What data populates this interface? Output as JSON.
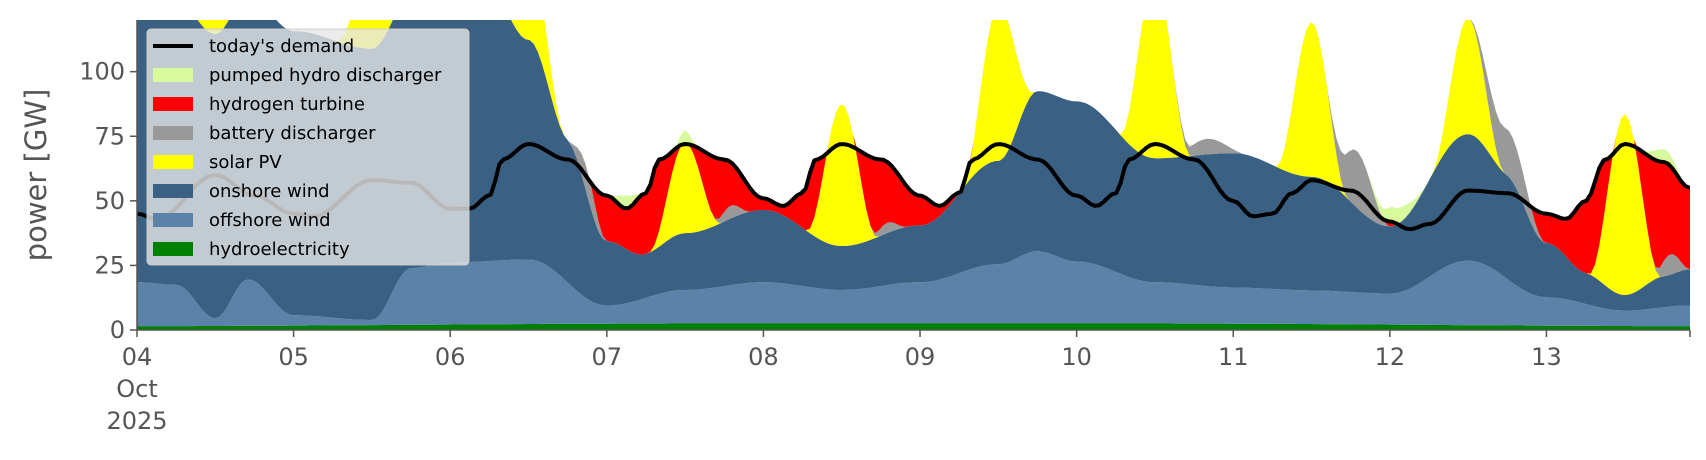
{
  "chart_data": {
    "type": "area",
    "ylabel": "power [GW]",
    "ylim": [
      0,
      120
    ],
    "yticks": [
      0,
      25,
      50,
      75,
      100
    ],
    "x_start": "2025-10-04",
    "x_end": "2025-10-13 22:00",
    "x_ticks": [
      {
        "date": "2025-10-04",
        "label": "04",
        "month": "Oct",
        "year": "2025"
      },
      {
        "date": "2025-10-05",
        "label": "05"
      },
      {
        "date": "2025-10-06",
        "label": "06"
      },
      {
        "date": "2025-10-07",
        "label": "07"
      },
      {
        "date": "2025-10-08",
        "label": "08"
      },
      {
        "date": "2025-10-09",
        "label": "09"
      },
      {
        "date": "2025-10-10",
        "label": "10"
      },
      {
        "date": "2025-10-11",
        "label": "11"
      },
      {
        "date": "2025-10-12",
        "label": "12"
      },
      {
        "date": "2025-10-13",
        "label": "13"
      }
    ],
    "legend_position": "top-left",
    "grid": false,
    "series": [
      {
        "name": "hydroelectricity",
        "color": "#008000",
        "kind": "stack",
        "points": [
          [
            "2025-10-04 00:00",
            1.5
          ],
          [
            "2025-10-07 12:00",
            2.5
          ],
          [
            "2025-10-10 12:00",
            2.5
          ],
          [
            "2025-10-13 22:00",
            1.5
          ]
        ]
      },
      {
        "name": "offshore wind",
        "color": "#5b82a8",
        "kind": "stack",
        "points": [
          [
            "2025-10-04 00:00",
            17
          ],
          [
            "2025-10-04 06:00",
            16
          ],
          [
            "2025-10-04 12:00",
            3
          ],
          [
            "2025-10-04 17:00",
            18
          ],
          [
            "2025-10-05 00:00",
            4
          ],
          [
            "2025-10-05 12:00",
            2
          ],
          [
            "2025-10-05 18:00",
            22
          ],
          [
            "2025-10-06 00:00",
            24
          ],
          [
            "2025-10-06 12:00",
            25
          ],
          [
            "2025-10-07 00:00",
            7
          ],
          [
            "2025-10-07 12:00",
            13
          ],
          [
            "2025-10-08 00:00",
            16
          ],
          [
            "2025-10-08 12:00",
            13
          ],
          [
            "2025-10-09 00:00",
            16
          ],
          [
            "2025-10-09 12:00",
            23
          ],
          [
            "2025-10-09 18:00",
            28
          ],
          [
            "2025-10-10 00:00",
            24
          ],
          [
            "2025-10-10 12:00",
            16
          ],
          [
            "2025-10-11 00:00",
            14
          ],
          [
            "2025-10-11 12:00",
            13
          ],
          [
            "2025-10-12 00:00",
            12
          ],
          [
            "2025-10-12 12:00",
            25
          ],
          [
            "2025-10-13 00:00",
            11
          ],
          [
            "2025-10-13 12:00",
            6
          ],
          [
            "2025-10-13 22:00",
            8
          ]
        ]
      },
      {
        "name": "onshore wind",
        "color": "#3a6184",
        "kind": "stack",
        "points": [
          [
            "2025-10-04 00:00",
            110
          ],
          [
            "2025-10-04 12:00",
            110
          ],
          [
            "2025-10-05 00:00",
            110
          ],
          [
            "2025-10-05 12:00",
            105
          ],
          [
            "2025-10-06 00:00",
            105
          ],
          [
            "2025-10-06 06:00",
            104
          ],
          [
            "2025-10-06 12:00",
            85
          ],
          [
            "2025-10-06 18:00",
            55
          ],
          [
            "2025-10-07 00:00",
            25
          ],
          [
            "2025-10-07 06:00",
            17
          ],
          [
            "2025-10-07 12:00",
            22
          ],
          [
            "2025-10-08 00:00",
            28
          ],
          [
            "2025-10-08 12:00",
            17
          ],
          [
            "2025-10-09 00:00",
            22
          ],
          [
            "2025-10-09 12:00",
            40
          ],
          [
            "2025-10-09 18:00",
            62
          ],
          [
            "2025-10-10 00:00",
            62
          ],
          [
            "2025-10-10 12:00",
            48
          ],
          [
            "2025-10-11 00:00",
            52
          ],
          [
            "2025-10-11 12:00",
            44
          ],
          [
            "2025-10-12 00:00",
            26
          ],
          [
            "2025-10-12 12:00",
            49
          ],
          [
            "2025-10-12 18:00",
            40
          ],
          [
            "2025-10-13 00:00",
            21
          ],
          [
            "2025-10-13 06:00",
            12
          ],
          [
            "2025-10-13 12:00",
            6
          ],
          [
            "2025-10-13 18:00",
            12
          ],
          [
            "2025-10-13 22:00",
            14
          ]
        ]
      },
      {
        "name": "solar PV",
        "color": "#ffff00",
        "kind": "peaks",
        "peaks": [
          [
            "2025-10-04 12:00",
            40
          ],
          [
            "2025-10-05 12:00",
            30
          ],
          [
            "2025-10-06 12:00",
            35
          ],
          [
            "2025-10-07 12:00",
            35
          ],
          [
            "2025-10-08 12:00",
            55
          ],
          [
            "2025-10-09 12:00",
            60
          ],
          [
            "2025-10-10 12:00",
            70
          ],
          [
            "2025-10-11 12:00",
            60
          ],
          [
            "2025-10-12 12:00",
            45
          ],
          [
            "2025-10-13 12:00",
            70
          ]
        ]
      },
      {
        "name": "battery discharger",
        "color": "#999999",
        "kind": "windows",
        "windows": [
          [
            "2025-10-06 18:00",
            "2025-10-07 00:00",
            10
          ],
          [
            "2025-10-07 16:00",
            "2025-10-07 22:00",
            5
          ],
          [
            "2025-10-08 16:00",
            "2025-10-08 22:00",
            4
          ],
          [
            "2025-10-10 14:00",
            "2025-10-11 02:00",
            6
          ],
          [
            "2025-10-11 14:00",
            "2025-10-12 00:00",
            22
          ],
          [
            "2025-10-12 12:00",
            "2025-10-13 00:00",
            18
          ],
          [
            "2025-10-13 16:00",
            "2025-10-13 22:00",
            8
          ]
        ]
      },
      {
        "name": "hydrogen turbine",
        "color": "#ff0000",
        "kind": "fill"
      },
      {
        "name": "pumped hydro discharger",
        "color": "#d6fa9c",
        "kind": "windows",
        "windows": [
          [
            "2025-10-07 00:00",
            "2025-10-07 06:00",
            5
          ],
          [
            "2025-10-07 10:00",
            "2025-10-07 14:00",
            5
          ],
          [
            "2025-10-11 20:00",
            "2025-10-12 06:00",
            6
          ],
          [
            "2025-10-13 14:00",
            "2025-10-13 22:00",
            5
          ]
        ]
      }
    ],
    "demand": {
      "name": "today's demand",
      "color": "#000000",
      "points": [
        [
          "2025-10-04 00:00",
          45
        ],
        [
          "2025-10-04 03:00",
          43
        ],
        [
          "2025-10-04 12:00",
          60
        ],
        [
          "2025-10-04 18:00",
          52
        ],
        [
          "2025-10-05 00:00",
          45
        ],
        [
          "2025-10-05 03:00",
          44
        ],
        [
          "2025-10-05 12:00",
          58
        ],
        [
          "2025-10-05 18:00",
          57
        ],
        [
          "2025-10-06 00:00",
          47
        ],
        [
          "2025-10-06 03:00",
          47
        ],
        [
          "2025-10-06 06:00",
          52
        ],
        [
          "2025-10-06 08:00",
          66
        ],
        [
          "2025-10-06 12:00",
          72
        ],
        [
          "2025-10-06 18:00",
          66
        ],
        [
          "2025-10-07 00:00",
          52
        ],
        [
          "2025-10-07 03:00",
          47
        ],
        [
          "2025-10-07 06:00",
          53
        ],
        [
          "2025-10-07 08:00",
          66
        ],
        [
          "2025-10-07 12:00",
          72
        ],
        [
          "2025-10-07 18:00",
          66
        ],
        [
          "2025-10-08 00:00",
          51
        ],
        [
          "2025-10-08 03:00",
          48
        ],
        [
          "2025-10-08 06:00",
          53
        ],
        [
          "2025-10-08 08:00",
          66
        ],
        [
          "2025-10-08 12:00",
          72
        ],
        [
          "2025-10-08 18:00",
          66
        ],
        [
          "2025-10-09 00:00",
          52
        ],
        [
          "2025-10-09 03:00",
          48
        ],
        [
          "2025-10-09 06:00",
          53
        ],
        [
          "2025-10-09 08:00",
          66
        ],
        [
          "2025-10-09 12:00",
          72
        ],
        [
          "2025-10-09 18:00",
          66
        ],
        [
          "2025-10-10 00:00",
          52
        ],
        [
          "2025-10-10 03:00",
          48
        ],
        [
          "2025-10-10 06:00",
          53
        ],
        [
          "2025-10-10 08:00",
          66
        ],
        [
          "2025-10-10 12:00",
          72
        ],
        [
          "2025-10-10 18:00",
          66
        ],
        [
          "2025-10-11 00:00",
          50
        ],
        [
          "2025-10-11 03:00",
          44
        ],
        [
          "2025-10-11 06:00",
          45
        ],
        [
          "2025-10-11 09:00",
          53
        ],
        [
          "2025-10-11 12:00",
          58
        ],
        [
          "2025-10-11 18:00",
          54
        ],
        [
          "2025-10-12 00:00",
          42
        ],
        [
          "2025-10-12 03:00",
          39
        ],
        [
          "2025-10-12 06:00",
          41
        ],
        [
          "2025-10-12 12:00",
          54
        ],
        [
          "2025-10-12 18:00",
          53
        ],
        [
          "2025-10-13 00:00",
          45
        ],
        [
          "2025-10-13 03:00",
          43
        ],
        [
          "2025-10-13 06:00",
          50
        ],
        [
          "2025-10-13 09:00",
          66
        ],
        [
          "2025-10-13 12:00",
          72
        ],
        [
          "2025-10-13 18:00",
          65
        ],
        [
          "2025-10-13 22:00",
          55
        ]
      ]
    },
    "legend_order": [
      "today's demand",
      "pumped hydro discharger",
      "hydrogen turbine",
      "battery discharger",
      "solar PV",
      "onshore wind",
      "offshore wind",
      "hydroelectricity"
    ]
  }
}
